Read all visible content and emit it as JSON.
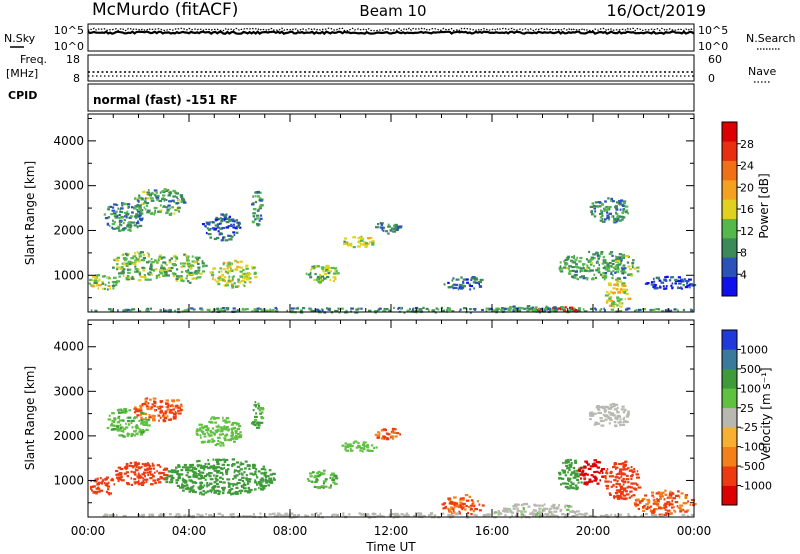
{
  "header": {
    "station": "McMurdo (fitACF)",
    "beam": "Beam 10",
    "date": "16/Oct/2019"
  },
  "noise_panel": {
    "left_label": "N.Sky",
    "left_tick_top": "10^5",
    "left_tick_bottom": "10^0",
    "right_label": "N.Search",
    "right_tick_top": "10^5",
    "right_tick_bottom": "10^0",
    "log_range": [
      0,
      5
    ]
  },
  "freq_panel": {
    "left_label_line1": "Freq.",
    "left_label_line2": "[MHz]",
    "left_ticks": [
      "18",
      "8"
    ],
    "right_label": "Nave",
    "right_ticks": [
      "60",
      "0"
    ]
  },
  "cpid": {
    "label": "CPID",
    "value": "normal (fast) -151 RF"
  },
  "colors": {
    "power_scale": [
      "#1010ee",
      "#2a52b8",
      "#3c8a5a",
      "#55b84a",
      "#e0d020",
      "#f4a020",
      "#f07018",
      "#e83010",
      "#dd0000"
    ],
    "velocity_scale": [
      "#dd0000",
      "#ee3a10",
      "#f4801a",
      "#f8b030",
      "#b8b8b0",
      "#60c040",
      "#3f9a3a",
      "#3a7a9a",
      "#1f3ad8"
    ]
  },
  "chart_data": [
    {
      "type": "heatmap",
      "name": "power",
      "ylabel": "Slant Range [km]",
      "xlabel": "",
      "xlim": [
        0,
        24
      ],
      "ylim": [
        180,
        4600
      ],
      "x_ticks": [
        "00:00",
        "04:00",
        "08:00",
        "12:00",
        "16:00",
        "20:00",
        "00:00"
      ],
      "y_ticks": [
        "1000",
        "2000",
        "3000",
        "4000"
      ],
      "colorbar": {
        "label": "Power [dB]",
        "ticks": [
          "4",
          "8",
          "12",
          "16",
          "20",
          "24",
          "28"
        ],
        "range": [
          0,
          30
        ]
      },
      "patches": [
        {
          "t": [
            0.0,
            1.2
          ],
          "r": [
            700,
            1050
          ],
          "v": 13
        },
        {
          "t": [
            0.9,
            3.2
          ],
          "r": [
            900,
            1550
          ],
          "v": 12
        },
        {
          "t": [
            0.6,
            2.2
          ],
          "r": [
            2000,
            2650
          ],
          "v": 8
        },
        {
          "t": [
            1.8,
            3.8
          ],
          "r": [
            2350,
            2950
          ],
          "v": 10
        },
        {
          "t": [
            3.0,
            4.6
          ],
          "r": [
            850,
            1500
          ],
          "v": 11
        },
        {
          "t": [
            4.8,
            6.6
          ],
          "r": [
            750,
            1350
          ],
          "v": 14
        },
        {
          "t": [
            4.5,
            6.0
          ],
          "r": [
            1800,
            2400
          ],
          "v": 6
        },
        {
          "t": [
            6.4,
            6.9
          ],
          "r": [
            2100,
            2900
          ],
          "v": 9
        },
        {
          "t": [
            8.6,
            9.9
          ],
          "r": [
            850,
            1250
          ],
          "v": 12
        },
        {
          "t": [
            10.0,
            11.4
          ],
          "r": [
            1650,
            1900
          ],
          "v": 13
        },
        {
          "t": [
            11.2,
            12.4
          ],
          "r": [
            1950,
            2200
          ],
          "v": 7
        },
        {
          "t": [
            14.0,
            15.6
          ],
          "r": [
            700,
            1000
          ],
          "v": 6
        },
        {
          "t": [
            16.2,
            19.0
          ],
          "r": [
            200,
            350
          ],
          "v": 8
        },
        {
          "t": [
            17.6,
            19.6
          ],
          "r": [
            200,
            320
          ],
          "v": 28
        },
        {
          "t": [
            18.6,
            21.8
          ],
          "r": [
            900,
            1550
          ],
          "v": 10
        },
        {
          "t": [
            19.8,
            21.4
          ],
          "r": [
            2200,
            2750
          ],
          "v": 8
        },
        {
          "t": [
            20.4,
            21.4
          ],
          "r": [
            300,
            900
          ],
          "v": 15
        },
        {
          "t": [
            22.0,
            24.0
          ],
          "r": [
            700,
            1000
          ],
          "v": 5
        },
        {
          "t": [
            0.0,
            24.0
          ],
          "r": [
            190,
            300
          ],
          "v": 9
        }
      ]
    },
    {
      "type": "heatmap",
      "name": "velocity",
      "ylabel": "Slant Range [km]",
      "xlabel": "Time UT",
      "xlim": [
        0,
        24
      ],
      "ylim": [
        180,
        4600
      ],
      "x_ticks": [
        "00:00",
        "04:00",
        "08:00",
        "12:00",
        "16:00",
        "20:00",
        "00:00"
      ],
      "y_ticks": [
        "1000",
        "2000",
        "3000",
        "4000"
      ],
      "colorbar": {
        "label": "Velocity [m s⁻¹]",
        "ticks": [
          "1000",
          "500",
          "100",
          "25",
          "-25",
          "-100",
          "-500",
          "-1000"
        ],
        "range": [
          -1500,
          1500
        ]
      },
      "patches": [
        {
          "t": [
            0.0,
            1.2
          ],
          "r": [
            700,
            1100
          ],
          "v": -300
        },
        {
          "t": [
            1.0,
            3.1
          ],
          "r": [
            900,
            1450
          ],
          "v": -250
        },
        {
          "t": [
            0.7,
            2.4
          ],
          "r": [
            2000,
            2650
          ],
          "v": 80
        },
        {
          "t": [
            1.8,
            3.8
          ],
          "r": [
            2350,
            2900
          ],
          "v": -120
        },
        {
          "t": [
            3.0,
            7.4
          ],
          "r": [
            700,
            1500
          ],
          "v": 180
        },
        {
          "t": [
            4.2,
            6.0
          ],
          "r": [
            1800,
            2450
          ],
          "v": 60
        },
        {
          "t": [
            6.4,
            6.9
          ],
          "r": [
            2200,
            2800
          ],
          "v": 120
        },
        {
          "t": [
            8.6,
            9.9
          ],
          "r": [
            850,
            1250
          ],
          "v": 90
        },
        {
          "t": [
            10.0,
            11.4
          ],
          "r": [
            1650,
            1900
          ],
          "v": 70
        },
        {
          "t": [
            11.2,
            12.4
          ],
          "r": [
            1950,
            2200
          ],
          "v": -110
        },
        {
          "t": [
            14.0,
            15.6
          ],
          "r": [
            250,
            700
          ],
          "v": -120
        },
        {
          "t": [
            16.0,
            19.4
          ],
          "r": [
            200,
            500
          ],
          "v": 20
        },
        {
          "t": [
            18.6,
            19.6
          ],
          "r": [
            800,
            1500
          ],
          "v": 180
        },
        {
          "t": [
            19.4,
            20.4
          ],
          "r": [
            900,
            1500
          ],
          "v": -800
        },
        {
          "t": [
            20.4,
            21.8
          ],
          "r": [
            600,
            1450
          ],
          "v": -200
        },
        {
          "t": [
            19.8,
            21.4
          ],
          "r": [
            2200,
            2750
          ],
          "v": 0
        },
        {
          "t": [
            21.6,
            24.0
          ],
          "r": [
            250,
            800
          ],
          "v": -110
        },
        {
          "t": [
            0.0,
            24.0
          ],
          "r": [
            190,
            290
          ],
          "v": 15
        }
      ]
    }
  ]
}
